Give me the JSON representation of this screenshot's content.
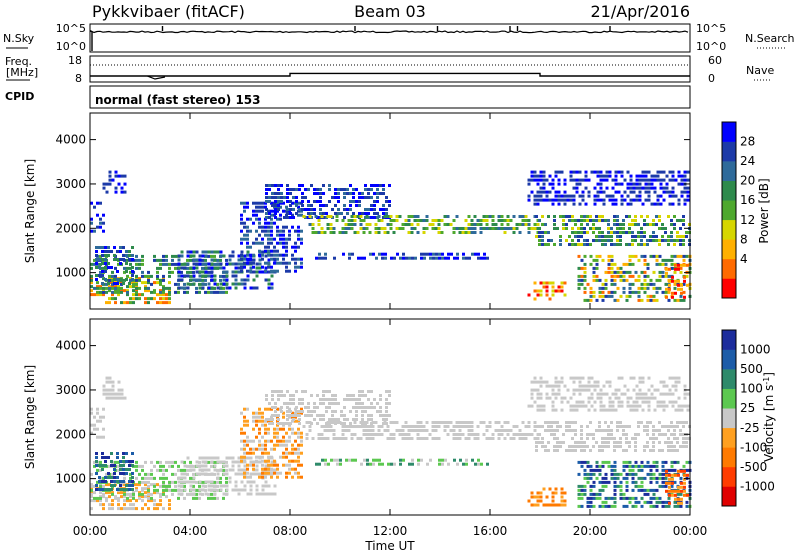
{
  "header": {
    "station": "Pykkvibaer (fitACF)",
    "beam": "Beam 03",
    "date": "21/Apr/2016"
  },
  "noise_panel": {
    "left_label": "N.Sky",
    "left_ticks": [
      "10^5",
      "10^0"
    ],
    "right_ticks": [
      "10^5",
      "10^0"
    ],
    "right_label": "N.Search"
  },
  "freq_panel": {
    "left_label_line1": "Freq.",
    "left_label_line2": "[MHz]",
    "left_ticks": [
      "18",
      "8"
    ],
    "right_ticks": [
      "60",
      "0"
    ],
    "right_label": "Nave",
    "freq_steps": [
      {
        "start_h": 0,
        "end_h": 8,
        "value": 10.3
      },
      {
        "start_h": 8,
        "end_h": 18,
        "value": 11.3
      },
      {
        "start_h": 18,
        "end_h": 24,
        "value": 10.3
      }
    ]
  },
  "cpid_panel": {
    "label": "CPID",
    "text": "normal (fast stereo) 153"
  },
  "chart_data": [
    {
      "type": "heatmap",
      "ylabel": "Slant Range [km]",
      "ylim": [
        180,
        4600
      ],
      "y_ticks": [
        "1000",
        "2000",
        "3000",
        "4000"
      ],
      "colorbar": {
        "label": "Power [dB]",
        "ticks": [
          "28",
          "24",
          "20",
          "16",
          "12",
          "8",
          "4"
        ],
        "range": [
          0,
          30
        ],
        "colors": [
          "#0000ff",
          "#1c3aa8",
          "#2e6a9a",
          "#2e8a4c",
          "#4ea82e",
          "#d6d600",
          "#ffb000",
          "#ff6a00",
          "#ff0000"
        ]
      }
    },
    {
      "type": "heatmap",
      "ylabel": "Slant Range [km]",
      "ylim": [
        180,
        4600
      ],
      "y_ticks": [
        "1000",
        "2000",
        "3000",
        "4000"
      ],
      "colorbar": {
        "label_prefix": "Velocity [m s",
        "label_sup": "-1",
        "label_suffix": "]",
        "ticks": [
          "1000",
          "500",
          "100",
          "25",
          "-25",
          "-100",
          "-500",
          "-1000"
        ],
        "colors": [
          "#1c2c9c",
          "#1c5ca8",
          "#2e8a6a",
          "#5cc850",
          "#c8c8c8",
          "#ffa020",
          "#ff7a00",
          "#ff3c00",
          "#e00000"
        ]
      }
    }
  ],
  "xaxis": {
    "ticks": [
      "00:00",
      "04:00",
      "08:00",
      "12:00",
      "16:00",
      "20:00",
      "00:00"
    ],
    "label": "Time UT",
    "range_h": [
      0,
      24
    ]
  }
}
